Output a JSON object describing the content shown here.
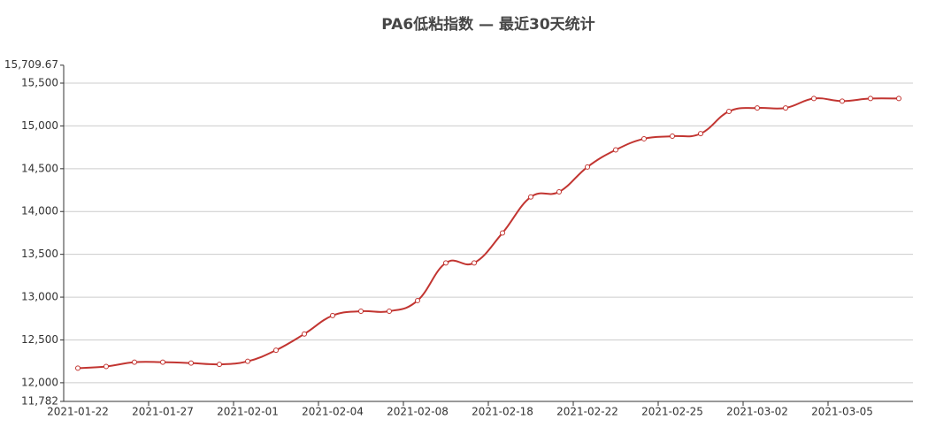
{
  "chart_data": {
    "type": "line",
    "title": "PA6低粘指数   —   最近30天统计",
    "categories": [
      "2021-01-22",
      null,
      null,
      "2021-01-27",
      null,
      null,
      "2021-02-01",
      null,
      null,
      "2021-02-04",
      null,
      null,
      "2021-02-08",
      null,
      null,
      "2021-02-18",
      null,
      null,
      "2021-02-22",
      null,
      null,
      "2021-02-25",
      null,
      null,
      "2021-03-02",
      null,
      null,
      "2021-03-05",
      null,
      null
    ],
    "series": [
      {
        "name": "PA6低粘指数",
        "color": "#c23531",
        "values": [
          12170,
          12190,
          12240,
          12240,
          12230,
          12215,
          12250,
          12380,
          12570,
          12785,
          12835,
          12835,
          12960,
          13400,
          13400,
          13750,
          14170,
          14230,
          14520,
          14720,
          14850,
          14880,
          14910,
          15170,
          15210,
          15210,
          15320,
          15290,
          15320,
          15320
        ]
      }
    ],
    "ylim": [
      11782,
      15709.67
    ],
    "yticks": [
      {
        "value": 11782,
        "label": "11,782"
      },
      {
        "value": 12000,
        "label": "12,000"
      },
      {
        "value": 12500,
        "label": "12,500"
      },
      {
        "value": 13000,
        "label": "13,000"
      },
      {
        "value": 13500,
        "label": "13,500"
      },
      {
        "value": 14000,
        "label": "14,000"
      },
      {
        "value": 14500,
        "label": "14,500"
      },
      {
        "value": 15000,
        "label": "15,000"
      },
      {
        "value": 15500,
        "label": "15,500"
      },
      {
        "value": 15709.67,
        "label": "15,709.67"
      }
    ],
    "grid": true
  }
}
